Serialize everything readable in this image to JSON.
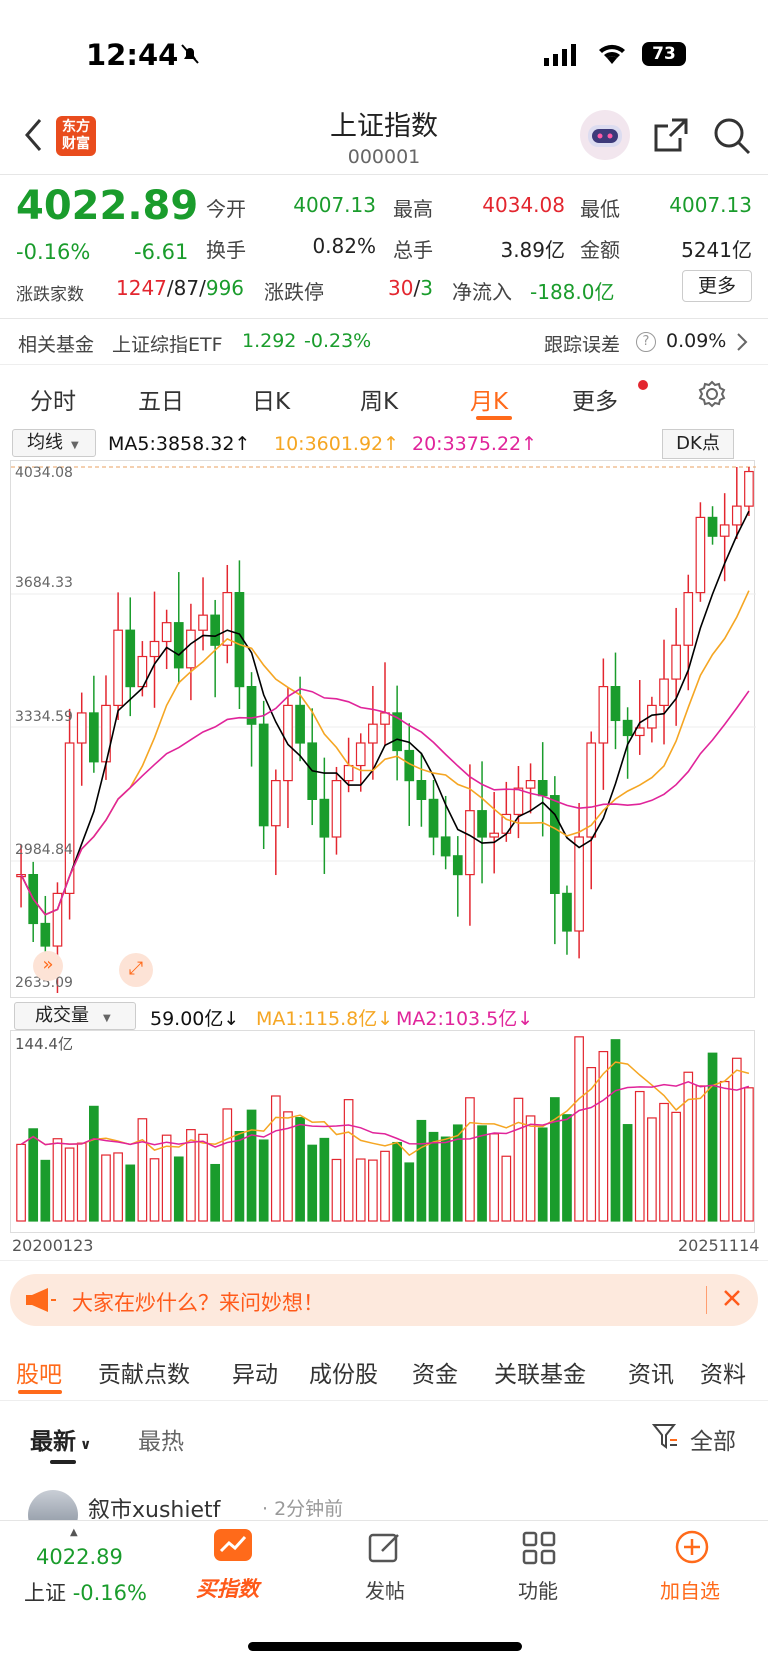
{
  "status_bar": {
    "time": "12:44",
    "battery": "73"
  },
  "header": {
    "title": "上证指数",
    "code": "000001",
    "logo_line1": "东方",
    "logo_line2": "财富"
  },
  "quote": {
    "price": "4022.89",
    "change_pct": "-0.16%",
    "change": "-6.61",
    "open_label": "今开",
    "open": "4007.13",
    "high_label": "最高",
    "high": "4034.08",
    "low_label": "最低",
    "low": "4007.13",
    "turnover_label": "换手",
    "turnover": "0.82%",
    "volume_label": "总手",
    "volume": "3.89亿",
    "amount_label": "金额",
    "amount": "5241亿",
    "breadth_label": "涨跌家数",
    "up": "1247",
    "flat": "87",
    "down": "996",
    "limit_label": "涨跌停",
    "limit_up": "30",
    "limit_down": "3",
    "netflow_label": "净流入",
    "netflow": "-188.0亿",
    "more_label": "更多"
  },
  "fund": {
    "label": "相关基金",
    "name": "上证综指ETF",
    "price": "1.292",
    "change": "-0.23%",
    "tracking_label": "跟踪误差",
    "tracking": "0.09%"
  },
  "period_tabs": [
    "分时",
    "五日",
    "日K",
    "周K",
    "月K",
    "更多"
  ],
  "active_period": "月K",
  "ma": {
    "selector": "均线",
    "ma5": "MA5:3858.32↑",
    "ma10": "10:3601.92↑",
    "ma20": "20:3375.22↑",
    "dk": "DK点"
  },
  "price_axis": [
    "4034.08",
    "3684.33",
    "3334.59",
    "2984.84",
    "2635.09"
  ],
  "volume": {
    "selector": "成交量",
    "value": "59.00亿↓",
    "ma1": "MA1:115.8亿↓",
    "ma2": "MA2:103.5亿↓",
    "max": "144.4亿",
    "start_date": "20200123",
    "end_date": "20251114"
  },
  "banner": {
    "text": "大家在炒什么？来问妙想！"
  },
  "content_tabs": [
    "股吧",
    "贡献点数",
    "异动",
    "成份股",
    "资金",
    "关联基金",
    "资讯",
    "资料"
  ],
  "sort": {
    "latest": "最新",
    "hot": "最热",
    "filter": "全部"
  },
  "post": {
    "user": "叙市xushietf",
    "time": "· 2分钟前"
  },
  "nav": {
    "index_price": "4022.89",
    "index_name": "上证",
    "index_change": "-0.16%",
    "buy": "买指数",
    "post": "发帖",
    "func": "功能",
    "add": "加自选"
  },
  "colors": {
    "up": "#e3262f",
    "down": "#1a9c2c",
    "accent": "#ff6a1a",
    "ma5": "#000000",
    "ma10": "#f5a623",
    "ma20": "#e0249a"
  }
}
